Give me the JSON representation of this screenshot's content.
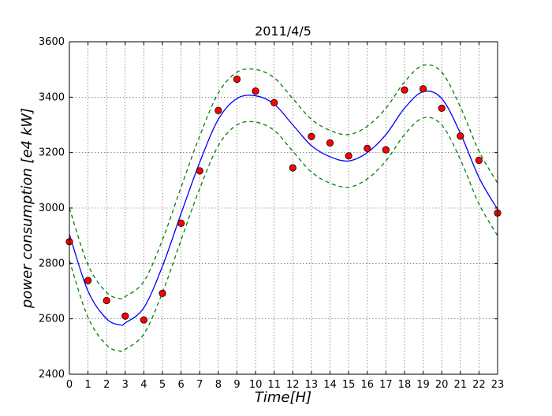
{
  "chart_data": {
    "type": "line",
    "title": "2011/4/5",
    "xlabel": "Time[H]",
    "ylabel": "power consumption [e4 kW]",
    "xlim": [
      0,
      23
    ],
    "ylim": [
      2400,
      3600
    ],
    "xticks": [
      0,
      1,
      2,
      3,
      4,
      5,
      6,
      7,
      8,
      9,
      10,
      11,
      12,
      13,
      14,
      15,
      16,
      17,
      18,
      19,
      20,
      21,
      22,
      23
    ],
    "yticks": [
      2400,
      2600,
      2800,
      3000,
      3200,
      3400,
      3600
    ],
    "grid": true,
    "colors": {
      "fit": "#0000ff",
      "band": "#008000",
      "points": "#ff0000"
    },
    "fit_curve": {
      "x": [
        0,
        1,
        2,
        2.75,
        3,
        4,
        5,
        6,
        7,
        8,
        9,
        10,
        11,
        12,
        13,
        14,
        15,
        16,
        17,
        18,
        19,
        20,
        21,
        22,
        23
      ],
      "y": [
        2905,
        2700,
        2600,
        2578,
        2585,
        2640,
        2790,
        2980,
        3165,
        3320,
        3395,
        3405,
        3375,
        3300,
        3225,
        3185,
        3170,
        3200,
        3265,
        3360,
        3420,
        3395,
        3270,
        3110,
        2995
      ]
    },
    "band_offset": 95,
    "observed": {
      "x": [
        0,
        1,
        2,
        3,
        4,
        5,
        6,
        7,
        8,
        9,
        10,
        11,
        12,
        13,
        14,
        15,
        16,
        17,
        18,
        19,
        20,
        21,
        22,
        23
      ],
      "y": [
        2878,
        2738,
        2666,
        2610,
        2596,
        2692,
        2945,
        3134,
        3352,
        3465,
        3422,
        3380,
        3145,
        3258,
        3235,
        3188,
        3215,
        3210,
        3426,
        3430,
        3360,
        3260,
        3172,
        2982
      ]
    }
  }
}
